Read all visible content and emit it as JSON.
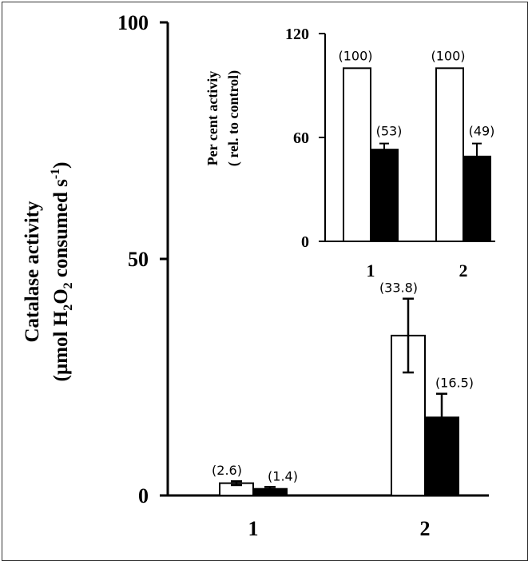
{
  "chart_data": [
    {
      "type": "bar",
      "ylabel_line1": "Catalase activity",
      "ylabel_line2_parts": [
        "(µmol  H",
        "2",
        "O",
        "2",
        "  consumed  s",
        "-1",
        ")"
      ],
      "ylim": [
        0,
        100
      ],
      "yticks": [
        "0",
        "50",
        "100"
      ],
      "categories": [
        "1",
        "2"
      ],
      "series": [
        {
          "fill": "#ffffff",
          "values": [
            2.6,
            33.8
          ],
          "errors": [
            0.4,
            7.8
          ],
          "value_labels": [
            "(2.6)",
            "(33.8)"
          ]
        },
        {
          "fill": "#000000",
          "values": [
            1.4,
            16.5
          ],
          "errors": [
            0.4,
            5.0
          ],
          "value_labels": [
            "(1.4)",
            "(16.5)"
          ]
        }
      ]
    },
    {
      "type": "bar",
      "ylabel_line1": "Per cent activiy",
      "ylabel_line2": "( rel. to control)",
      "ylim": [
        0,
        120
      ],
      "yticks": [
        "0",
        "60",
        "120"
      ],
      "categories": [
        "1",
        "2"
      ],
      "series": [
        {
          "fill": "#ffffff",
          "values": [
            100,
            100
          ],
          "errors": [
            0,
            0
          ],
          "value_labels": [
            "(100)",
            "(100)"
          ]
        },
        {
          "fill": "#000000",
          "values": [
            53,
            49
          ],
          "errors": [
            3.5,
            7.5
          ],
          "value_labels": [
            "(53)",
            "(49)"
          ]
        }
      ]
    }
  ]
}
